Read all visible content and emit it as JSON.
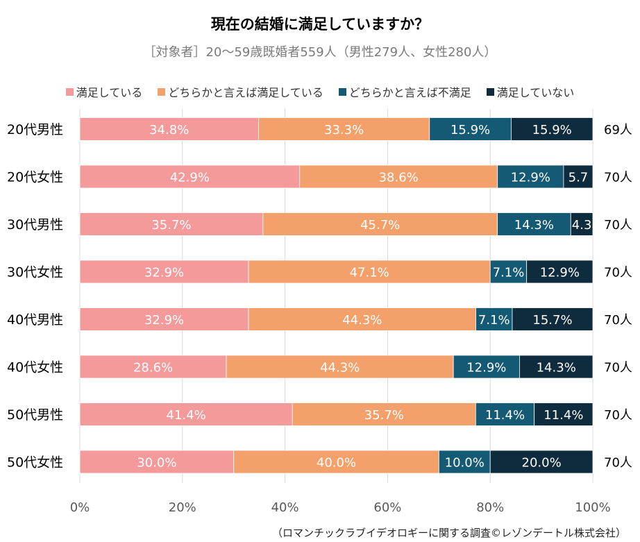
{
  "chart_data": {
    "type": "bar",
    "orientation": "horizontal",
    "stacked": true,
    "title": "現在の結婚に満足していますか？",
    "subtitle": "［対象者］20～59歳既婚者559人（男性279人、女性280人）",
    "categories": [
      "20代男性",
      "20代女性",
      "30代男性",
      "30代女性",
      "40代男性",
      "40代女性",
      "50代男性",
      "50代女性"
    ],
    "counts": [
      "69人",
      "70人",
      "70人",
      "70人",
      "70人",
      "70人",
      "70人",
      "70人"
    ],
    "series": [
      {
        "name": "満足している",
        "color": "#f59a9a",
        "values": [
          34.8,
          42.9,
          35.7,
          32.9,
          32.9,
          28.6,
          41.4,
          30.0
        ],
        "labels": [
          "34.8%",
          "42.9%",
          "35.7%",
          "32.9%",
          "32.9%",
          "28.6%",
          "41.4%",
          "30.0%"
        ]
      },
      {
        "name": "どちらかと言えば満足している",
        "color": "#f4a06b",
        "values": [
          33.3,
          38.6,
          45.7,
          47.1,
          44.3,
          44.3,
          35.7,
          40.0
        ],
        "labels": [
          "33.3%",
          "38.6%",
          "45.7%",
          "47.1%",
          "44.3%",
          "44.3%",
          "35.7%",
          "40.0%"
        ]
      },
      {
        "name": "どちらかと言えば不満足",
        "color": "#155a75",
        "values": [
          15.9,
          12.9,
          14.3,
          7.1,
          7.1,
          12.9,
          11.4,
          10.0
        ],
        "labels": [
          "15.9%",
          "12.9%",
          "14.3%",
          "7.1%",
          "7.1%",
          "12.9%",
          "11.4%",
          "10.0%"
        ]
      },
      {
        "name": "満足していない",
        "color": "#0f2c3f",
        "values": [
          15.9,
          5.7,
          4.3,
          12.9,
          15.7,
          14.3,
          11.4,
          20.0
        ],
        "labels": [
          "15.9%",
          "5.7",
          "4.3",
          "12.9%",
          "15.7%",
          "14.3%",
          "11.4%",
          "20.0%"
        ]
      }
    ],
    "xlim": [
      0,
      100
    ],
    "xticks": [
      "0%",
      "20%",
      "40%",
      "60%",
      "80%",
      "100%"
    ],
    "grid": true,
    "legend_position": "top"
  },
  "source_note": "（ロマンチックラブイデオロギーに関する調査©レゾンデートル株式会社）"
}
